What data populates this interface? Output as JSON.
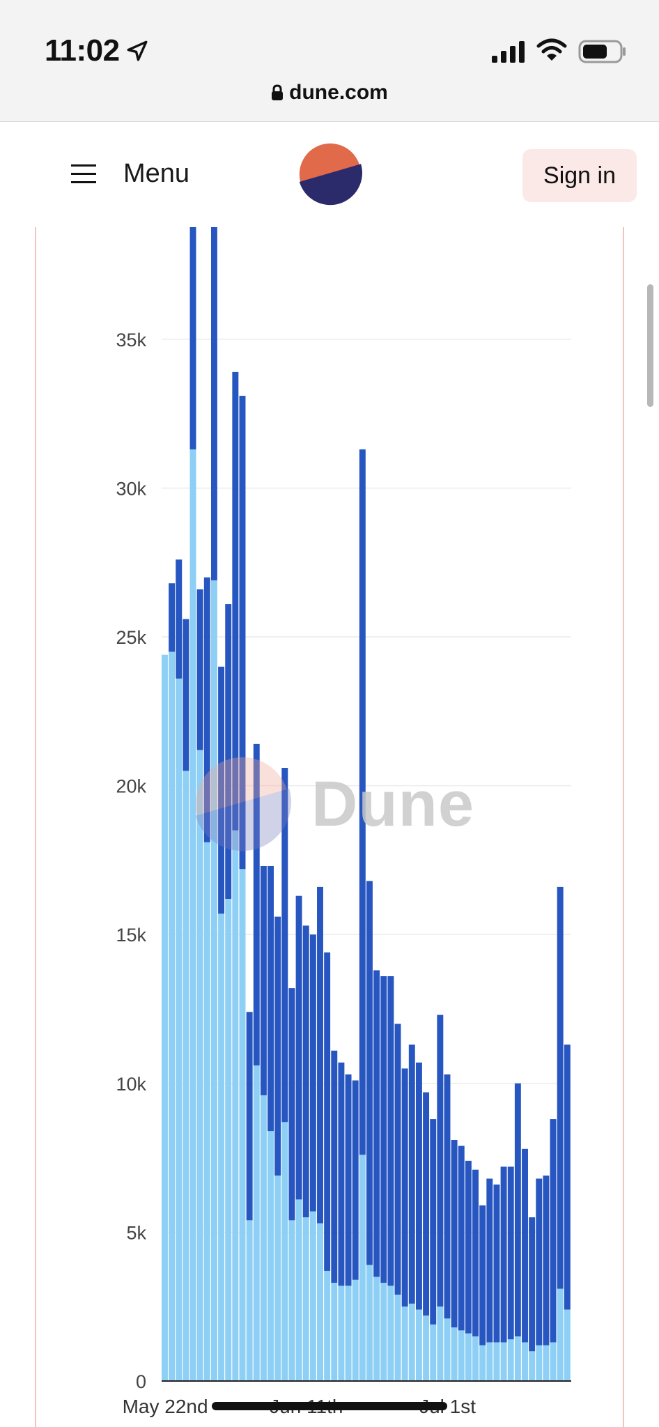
{
  "status_bar": {
    "time": "11:02",
    "url": "dune.com",
    "icons": [
      "location-arrow-icon",
      "signal-icon",
      "wifi-icon",
      "battery-icon",
      "lock-icon"
    ]
  },
  "nav": {
    "menu_label": "Menu",
    "signin_label": "Sign in",
    "icons": [
      "hamburger-icon",
      "dune-logo"
    ]
  },
  "watermark": {
    "text": "Dune"
  },
  "colors": {
    "bar_base": "#8ecff5",
    "bar_top": "#2756c1",
    "logo_orange": "#e06a4a",
    "logo_navy": "#2b2a6b",
    "card_border": "#f2c4bb"
  },
  "chart_data": {
    "type": "bar",
    "stacked": true,
    "title": "",
    "xlabel": "",
    "ylabel": "",
    "ylim": [
      0,
      39000
    ],
    "yticks": [
      0,
      5000,
      10000,
      15000,
      20000,
      25000,
      30000,
      35000
    ],
    "ytick_labels": [
      "0",
      "5k",
      "10k",
      "15k",
      "20k",
      "25k",
      "30k",
      "35k"
    ],
    "x_tick_labels": [
      "May 22nd",
      "Jun 11th",
      "Jul 1st"
    ],
    "x_tick_positions": [
      0,
      20,
      40
    ],
    "grid": true,
    "legend": "none",
    "series": [
      {
        "values": [
          24400,
          24500,
          23600,
          20500,
          31300,
          21200,
          18100,
          26900,
          15700,
          16200,
          18500,
          17200,
          5400,
          10600,
          9600,
          8400,
          6900,
          8700,
          5400,
          6100,
          5500,
          5700,
          5300,
          3700,
          3300,
          3200,
          3200,
          3400,
          7600,
          3900,
          3500,
          3300,
          3200,
          2900,
          2500,
          2600,
          2400,
          2200,
          1900,
          2500,
          2100,
          1800,
          1700,
          1600,
          1500,
          1200,
          1300,
          1300,
          1300,
          1400,
          1500,
          1300,
          1000,
          1200,
          1200,
          1300,
          3100,
          2400
        ]
      },
      {
        "values": [
          0,
          2300,
          4000,
          5100,
          8200,
          5400,
          8900,
          12200,
          8300,
          9900,
          15400,
          15900,
          7000,
          10800,
          7700,
          8900,
          8700,
          11900,
          7800,
          10200,
          9800,
          9300,
          11300,
          10700,
          7800,
          7500,
          7100,
          6700,
          23700,
          12900,
          10300,
          10300,
          10400,
          9100,
          8000,
          8700,
          8300,
          7500,
          6900,
          9800,
          8200,
          6300,
          6200,
          5800,
          5600,
          4700,
          5500,
          5300,
          5900,
          5800,
          8500,
          6500,
          4500,
          5600,
          5700,
          7500,
          13500,
          8900
        ]
      }
    ]
  }
}
